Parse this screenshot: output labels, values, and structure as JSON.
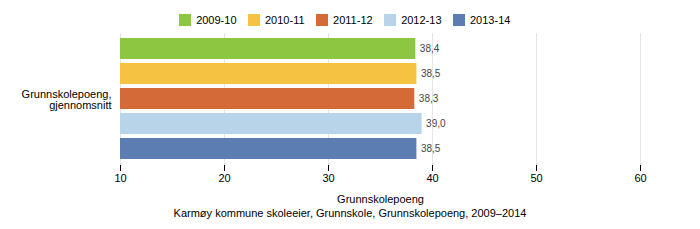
{
  "chart_data": {
    "type": "bar",
    "orientation": "horizontal",
    "categories": [
      "Grunnskolepoeng,\ngjennomsnitt"
    ],
    "series": [
      {
        "name": "2009-10",
        "color": "#8DC641",
        "values": [
          38.4
        ],
        "value_labels": [
          "38,4"
        ]
      },
      {
        "name": "2010-11",
        "color": "#F5C242",
        "values": [
          38.5
        ],
        "value_labels": [
          "38,5"
        ]
      },
      {
        "name": "2011-12",
        "color": "#D46A38",
        "values": [
          38.3
        ],
        "value_labels": [
          "38,3"
        ]
      },
      {
        "name": "2012-13",
        "color": "#B8D4E8",
        "values": [
          39.0
        ],
        "value_labels": [
          "39,0"
        ]
      },
      {
        "name": "2013-14",
        "color": "#5B7DB1",
        "values": [
          38.5
        ],
        "value_labels": [
          "38,5"
        ]
      }
    ],
    "xlim": [
      10,
      60
    ],
    "xticks": [
      10,
      20,
      30,
      40,
      50,
      60
    ],
    "xlabel": "Grunnskolepoeng",
    "caption": "Karmøy kommune skoleeier, Grunnskole, Grunnskolepoeng, 2009–2014",
    "grid": true,
    "data_labels": true,
    "legend": "top"
  }
}
